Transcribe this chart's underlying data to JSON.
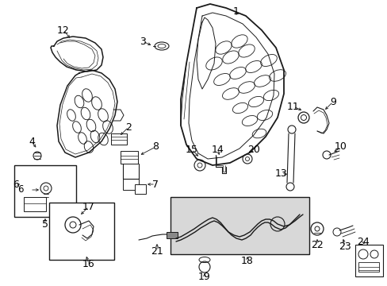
{
  "bg_color": "#ffffff",
  "line_color": "#1a1a1a",
  "box_fill": "#e0e0e0",
  "font_size": 8.5
}
